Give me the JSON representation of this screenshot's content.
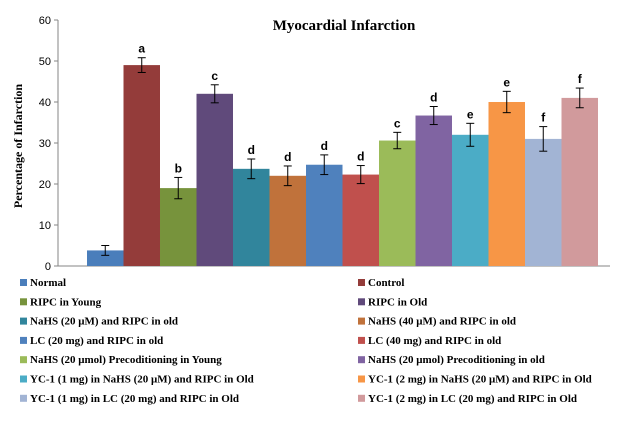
{
  "chart_data": {
    "type": "bar",
    "title": "Myocardial Infarction",
    "ylabel": "Percentage of Infarction",
    "xlabel": "",
    "ylim": [
      0,
      60
    ],
    "yticks": [
      "0",
      "10",
      "20",
      "30",
      "40",
      "50",
      "60"
    ],
    "grid": false,
    "legend_placement": "bottom",
    "series": [
      {
        "name": "Normal",
        "value": 3.8,
        "error": 1.2,
        "label": "",
        "color": "#4A7EBB"
      },
      {
        "name": "Control",
        "value": 49.0,
        "error": 1.8,
        "label": "a",
        "color": "#943C3A"
      },
      {
        "name": "RIPC in Young",
        "value": 19.0,
        "error": 2.6,
        "label": "b",
        "color": "#77933C"
      },
      {
        "name": "RIPC in Old",
        "value": 42.0,
        "error": 2.2,
        "label": "c",
        "color": "#604A7B"
      },
      {
        "name": "NaHS (20 μM) and RIPC in old",
        "value": 23.7,
        "error": 2.4,
        "label": "d",
        "color": "#31859C"
      },
      {
        "name": "NaHS (40 μM) and RIPC in old",
        "value": 22.0,
        "error": 2.4,
        "label": "d",
        "color": "#C0723B"
      },
      {
        "name": "LC (20 mg) and RIPC in old",
        "value": 24.7,
        "error": 2.4,
        "label": "d",
        "color": "#4F81BD"
      },
      {
        "name": "LC (40 mg) and RIPC in old",
        "value": 22.3,
        "error": 2.2,
        "label": "d",
        "color": "#C0504D"
      },
      {
        "name": "NaHS  (20 μmol) Precoditioning in Young",
        "value": 30.6,
        "error": 2.0,
        "label": "c",
        "color": "#9BBB59"
      },
      {
        "name": "NaHS  (20 μmol) Precoditioning in old",
        "value": 36.7,
        "error": 2.2,
        "label": "d",
        "color": "#8064A2"
      },
      {
        "name": "YC-1 (1 mg) in NaHS (20 μM) and RIPC in Old",
        "value": 32.0,
        "error": 2.8,
        "label": "e",
        "color": "#4BACC6"
      },
      {
        "name": "YC-1 (2 mg) in NaHS (20 μM) and RIPC in Old",
        "value": 40.0,
        "error": 2.6,
        "label": "e",
        "color": "#F79646"
      },
      {
        "name": "YC-1 (1 mg) in LC (20 mg) and RIPC in Old",
        "value": 31.0,
        "error": 3.0,
        "label": "f",
        "color": "#A2B4D4"
      },
      {
        "name": "YC-1 (2 mg) in LC (20 mg) and RIPC in Old",
        "value": 41.0,
        "error": 2.4,
        "label": "f",
        "color": "#D19A9C"
      }
    ]
  }
}
